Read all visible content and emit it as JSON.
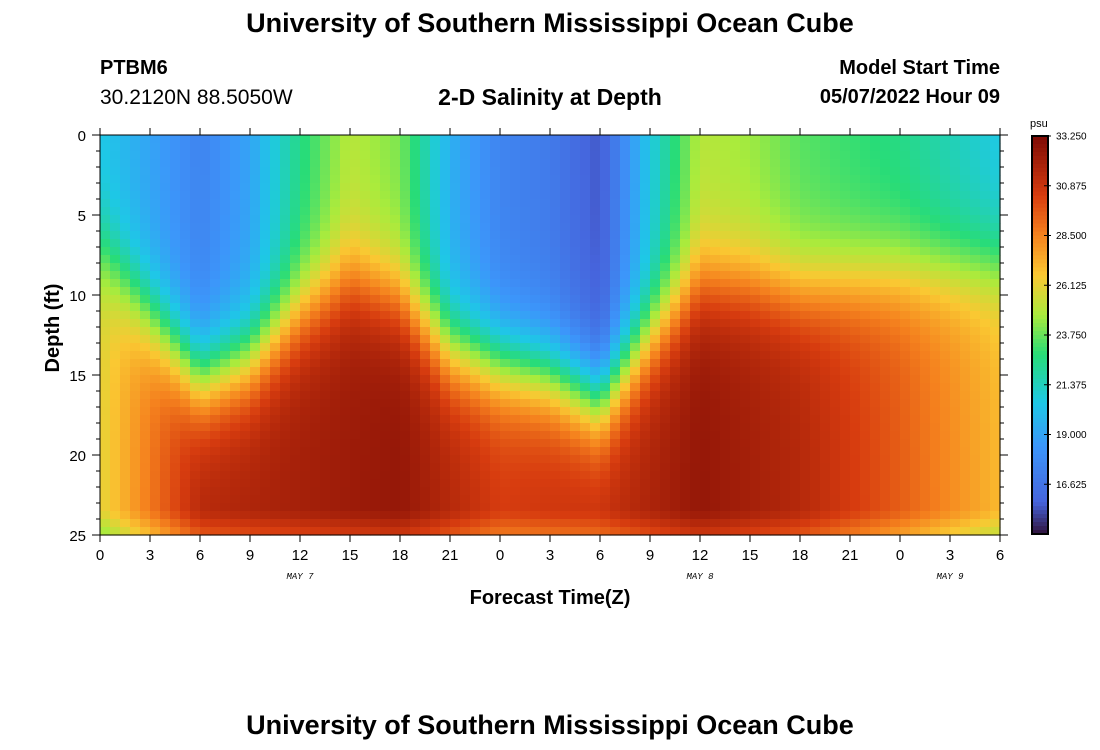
{
  "header": {
    "title": "University of Southern Mississippi Ocean Cube",
    "station_id": "PTBM6",
    "coordinates": "30.2120N  88.5050W",
    "subtitle": "2-D Salinity at Depth",
    "model_start_label": "Model Start Time",
    "model_start_value": "05/07/2022 Hour 09"
  },
  "footer": {
    "title": "University of Southern Mississippi Ocean Cube"
  },
  "chart_data": {
    "type": "heatmap",
    "title": "2-D Salinity at Depth",
    "xlabel": "Forecast Time(Z)",
    "ylabel": "Depth (ft)",
    "x_tick_labels": [
      "0",
      "3",
      "6",
      "9",
      "12",
      "15",
      "18",
      "21",
      "0",
      "3",
      "6",
      "9",
      "12",
      "15",
      "18",
      "21",
      "0",
      "3",
      "6"
    ],
    "x_range_hours": [
      0,
      54
    ],
    "date_labels": [
      {
        "text": "MAY 7",
        "hour": 12
      },
      {
        "text": "MAY 8",
        "hour": 36
      },
      {
        "text": "MAY 9",
        "hour": 51
      }
    ],
    "y_tick_labels": [
      "0",
      "5",
      "10",
      "15",
      "20",
      "25"
    ],
    "ylim": [
      0,
      25
    ],
    "y_inverted": true,
    "colorbar": {
      "unit": "psu",
      "tick_labels": [
        "33.250",
        "30.875",
        "28.500",
        "26.125",
        "23.750",
        "21.375",
        "19.000",
        "16.625"
      ],
      "min": 14.25,
      "max": 33.25
    },
    "surface_salinity_by_hour": [
      {
        "hour": 0,
        "psu": 20.5
      },
      {
        "hour": 3,
        "psu": 19.0
      },
      {
        "hour": 6,
        "psu": 17.5
      },
      {
        "hour": 9,
        "psu": 19.0
      },
      {
        "hour": 12,
        "psu": 22.5
      },
      {
        "hour": 15,
        "psu": 25.0
      },
      {
        "hour": 18,
        "psu": 24.0
      },
      {
        "hour": 21,
        "psu": 19.5
      },
      {
        "hour": 24,
        "psu": 17.5
      },
      {
        "hour": 27,
        "psu": 17.0
      },
      {
        "hour": 30,
        "psu": 15.5
      },
      {
        "hour": 33,
        "psu": 20.5
      },
      {
        "hour": 36,
        "psu": 25.0
      },
      {
        "hour": 39,
        "psu": 24.5
      },
      {
        "hour": 42,
        "psu": 23.5
      },
      {
        "hour": 45,
        "psu": 23.0
      },
      {
        "hour": 48,
        "psu": 22.5
      },
      {
        "hour": 51,
        "psu": 21.5
      },
      {
        "hour": 54,
        "psu": 20.5
      }
    ],
    "bottom_salinity_by_hour": [
      {
        "hour": 0,
        "psu": 26.0
      },
      {
        "hour": 6,
        "psu": 31.5
      },
      {
        "hour": 12,
        "psu": 32.0
      },
      {
        "hour": 18,
        "psu": 32.5
      },
      {
        "hour": 24,
        "psu": 30.5
      },
      {
        "hour": 30,
        "psu": 31.0
      },
      {
        "hour": 36,
        "psu": 32.5
      },
      {
        "hour": 42,
        "psu": 31.5
      },
      {
        "hour": 48,
        "psu": 29.5
      },
      {
        "hour": 54,
        "psu": 27.0
      }
    ]
  }
}
